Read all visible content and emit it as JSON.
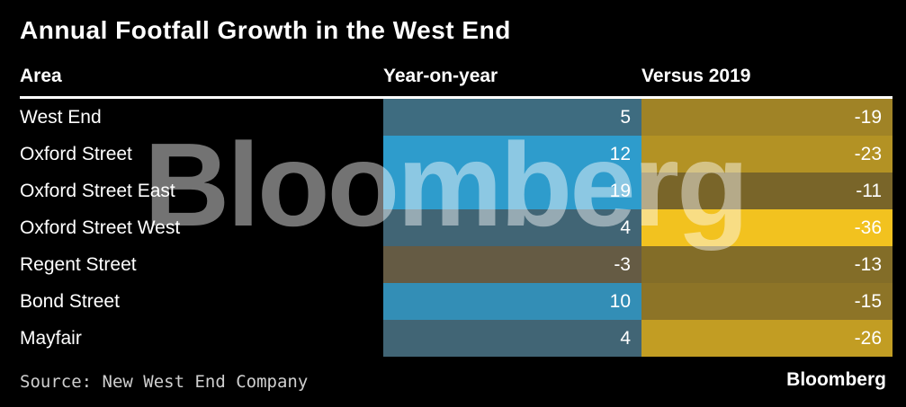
{
  "chart_data": {
    "type": "table",
    "title": "Annual Footfall Growth in the West End",
    "columns": [
      "Area",
      "Year-on-year",
      "Versus 2019"
    ],
    "rows": [
      {
        "area": "West End",
        "yoy": "5",
        "vs2019": "-19"
      },
      {
        "area": "Oxford Street",
        "yoy": "12",
        "vs2019": "-23"
      },
      {
        "area": "Oxford Street East",
        "yoy": "19",
        "vs2019": "-11"
      },
      {
        "area": "Oxford Street West",
        "yoy": "4",
        "vs2019": "-36"
      },
      {
        "area": "Regent Street",
        "yoy": "-3",
        "vs2019": "-13"
      },
      {
        "area": "Bond Street",
        "yoy": "10",
        "vs2019": "-15"
      },
      {
        "area": "Mayfair",
        "yoy": "4",
        "vs2019": "-26"
      }
    ],
    "source": "Source: New West End Company",
    "watermark": "Bloomberg",
    "brand": "Bloomberg",
    "colors": {
      "background": "#000000",
      "positive": "#2e9ccc",
      "negative": "#d9a62a",
      "low": "#4a4a4a"
    }
  }
}
